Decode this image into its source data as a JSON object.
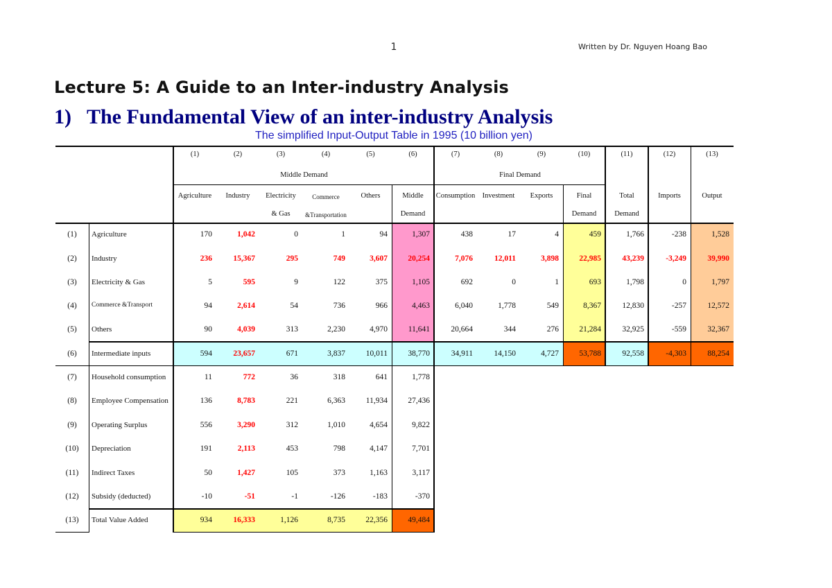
{
  "page": {
    "number": "1",
    "author": "Written by Dr. Nguyen Hoang Bao",
    "title": "Lecture 5: A Guide to an Inter-industry Analysis",
    "section": "1)   The Fundamental View of an inter-industry Analysis",
    "caption": "The simplified Input-Output Table in 1995 (10 billion yen)"
  },
  "colors": {
    "pink": "#ff99cc",
    "yellow": "#ffff99",
    "light_cyan": "#ccffff",
    "orange": "#ff6600",
    "peach": "#ffcc99",
    "highlight_red": "#ff0000",
    "title_blue": "#000080",
    "caption_blue": "#2020c0"
  },
  "table": {
    "group_headers": {
      "middle_demand": "Middle Demand",
      "final_demand": "Final Demand"
    },
    "columns": [
      {
        "num": "(1)",
        "line1": "Agriculture",
        "line2": ""
      },
      {
        "num": "(2)",
        "line1": "Industry",
        "line2": ""
      },
      {
        "num": "(3)",
        "line1": "Electricity",
        "line2": "& Gas"
      },
      {
        "num": "(4)",
        "line1": "Commerce",
        "line2": "&Transportation"
      },
      {
        "num": "(5)",
        "line1": "Others",
        "line2": ""
      },
      {
        "num": "(6)",
        "line1": "Middle",
        "line2": "Demand"
      },
      {
        "num": "(7)",
        "line1": "Consumption",
        "line2": ""
      },
      {
        "num": "(8)",
        "line1": "Investment",
        "line2": ""
      },
      {
        "num": "(9)",
        "line1": "Exports",
        "line2": ""
      },
      {
        "num": "(10)",
        "line1": "Final",
        "line2": "Demand"
      },
      {
        "num": "(11)",
        "line1": "Total",
        "line2": "Demand"
      },
      {
        "num": "(12)",
        "line1": "Imports",
        "line2": ""
      },
      {
        "num": "(13)",
        "line1": "Output",
        "line2": ""
      }
    ],
    "rows": [
      {
        "num": "(1)",
        "label": "Agriculture",
        "values": [
          "170",
          "1,042",
          "0",
          "1",
          "94",
          "1,307",
          "438",
          "17",
          "4",
          "459",
          "1,766",
          "-238",
          "1,528"
        ]
      },
      {
        "num": "(2)",
        "label": "Industry",
        "values": [
          "236",
          "15,367",
          "295",
          "749",
          "3,607",
          "20,254",
          "7,076",
          "12,011",
          "3,898",
          "22,985",
          "43,239",
          "-3,249",
          "39,990"
        ]
      },
      {
        "num": "(3)",
        "label": "Electricity & Gas",
        "values": [
          "5",
          "595",
          "9",
          "122",
          "375",
          "1,105",
          "692",
          "0",
          "1",
          "693",
          "1,798",
          "0",
          "1,797"
        ]
      },
      {
        "num": "(4)",
        "label": "Commerce &Transport",
        "values": [
          "94",
          "2,614",
          "54",
          "736",
          "966",
          "4,463",
          "6,040",
          "1,778",
          "549",
          "8,367",
          "12,830",
          "-257",
          "12,572"
        ]
      },
      {
        "num": "(5)",
        "label": "Others",
        "values": [
          "90",
          "4,039",
          "313",
          "2,230",
          "4,970",
          "11,641",
          "20,664",
          "344",
          "276",
          "21,284",
          "32,925",
          "-559",
          "32,367"
        ]
      },
      {
        "num": "(6)",
        "label": "Intermediate inputs",
        "values": [
          "594",
          "23,657",
          "671",
          "3,837",
          "10,011",
          "38,770",
          "34,911",
          "14,150",
          "4,727",
          "53,788",
          "92,558",
          "-4,303",
          "88,254"
        ]
      },
      {
        "num": "(7)",
        "label": "Household consumption",
        "values": [
          "11",
          "772",
          "36",
          "318",
          "641",
          "1,778"
        ]
      },
      {
        "num": "(8)",
        "label": "Employee Compensation",
        "values": [
          "136",
          "8,783",
          "221",
          "6,363",
          "11,934",
          "27,436"
        ]
      },
      {
        "num": "(9)",
        "label": "Operating Surplus",
        "values": [
          "556",
          "3,290",
          "312",
          "1,010",
          "4,654",
          "9,822"
        ]
      },
      {
        "num": "(10)",
        "label": "Depreciation",
        "values": [
          "191",
          "2,113",
          "453",
          "798",
          "4,147",
          "7,701"
        ]
      },
      {
        "num": "(11)",
        "label": "Indirect Taxes",
        "values": [
          "50",
          "1,427",
          "105",
          "373",
          "1,163",
          "3,117"
        ]
      },
      {
        "num": "(12)",
        "label": "Subsidy (deducted)",
        "values": [
          "-10",
          "-51",
          "-1",
          "-126",
          "-183",
          "-370"
        ]
      },
      {
        "num": "(13)",
        "label": "Total Value Added",
        "values": [
          "934",
          "16,333",
          "1,126",
          "8,735",
          "22,356",
          "49,484"
        ]
      }
    ]
  }
}
